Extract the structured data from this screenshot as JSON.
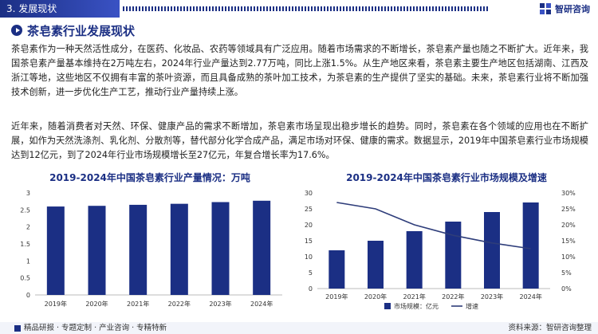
{
  "header": {
    "section_label": "3. 发展现状",
    "brand_name": "智研咨询"
  },
  "page_title": "茶皂素行业发展现状",
  "paragraphs": [
    "茶皂素作为一种天然活性成分，在医药、化妆品、农药等领域具有广泛应用。随着市场需求的不断增长，茶皂素产量也随之不断扩大。近年来，我国茶皂素产量基本维持在2万吨左右，2024年行业产量达到2.77万吨，同比上涨1.5%。从生产地区来看，茶皂素主要生产地区包括湖南、江西及浙江等地，这些地区不仅拥有丰富的茶叶资源，而且具备成熟的茶叶加工技术，为茶皂素的生产提供了坚实的基础。未来，茶皂素行业将不断加强技术创新，进一步优化生产工艺，推动行业产量持续上涨。",
    "近年来，随着消费者对天然、环保、健康产品的需求不断增加，茶皂素市场呈现出稳步增长的趋势。同时，茶皂素在各个领域的应用也在不断扩展，如作为天然洗涤剂、乳化剂、分散剂等，替代部分化学合成产品，满足市场对环保、健康的需求。数据显示，2019年中国茶皂素行业市场规模达到12亿元，到了2024年行业市场规模增长至27亿元，年复合增长率为17.6%。"
  ],
  "chart_data": [
    {
      "type": "bar",
      "title": "2019-2024年中国茶皂素行业产量情况：万吨",
      "categories": [
        "2019年",
        "2020年",
        "2021年",
        "2022年",
        "2023年",
        "2024年"
      ],
      "values": [
        2.6,
        2.62,
        2.65,
        2.68,
        2.73,
        2.77
      ],
      "ylim": [
        0,
        3
      ],
      "yticks": [
        "0",
        "0.5",
        "1",
        "1.5",
        "2",
        "2.5",
        "3"
      ],
      "grid": false,
      "color": "#1b2f84"
    },
    {
      "type": "bar",
      "title": "2019-2024年中国茶皂素行业市场规模及增速",
      "categories": [
        "2019年",
        "2020年",
        "2021年",
        "2022年",
        "2023年",
        "2024年"
      ],
      "series": [
        {
          "name": "市场规模：亿元",
          "type": "bar",
          "axis": "left",
          "values": [
            12,
            15,
            18,
            21,
            24,
            27
          ],
          "color": "#1b2f84"
        },
        {
          "name": "增速",
          "type": "line",
          "axis": "right",
          "values": [
            0.27,
            0.25,
            0.2,
            0.167,
            0.143,
            0.125
          ],
          "color": "#2e3d7a"
        }
      ],
      "ylim_left": [
        0,
        30
      ],
      "yticks_left": [
        "0",
        "5",
        "10",
        "15",
        "20",
        "25",
        "30"
      ],
      "ylim_right": [
        0,
        0.3
      ],
      "yticks_right": [
        "0%",
        "5%",
        "10%",
        "15%",
        "20%",
        "25%",
        "30%"
      ],
      "legend_position": "bottom"
    }
  ],
  "footer": {
    "left_text": "精品研报 · 专题定制 · 产业咨询 · 专精特新",
    "right_text": "资料来源：智研咨询整理"
  }
}
